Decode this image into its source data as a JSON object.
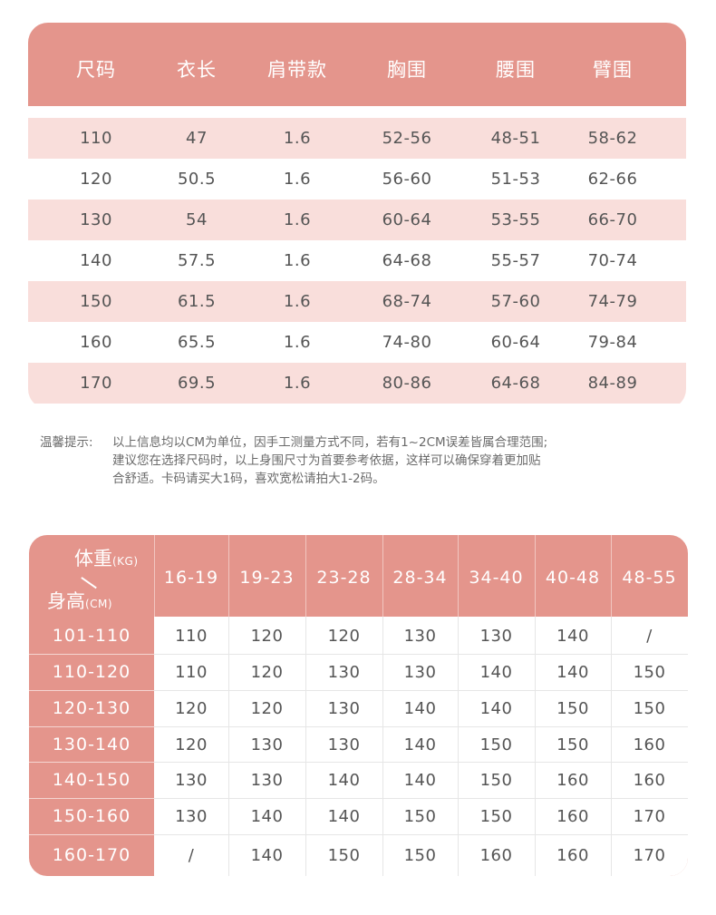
{
  "size_table": {
    "headers": [
      "尺码",
      "衣长",
      "肩带款",
      "胸围",
      "腰围",
      "臂围"
    ],
    "rows": [
      [
        "110",
        "47",
        "1.6",
        "52-56",
        "48-51",
        "58-62"
      ],
      [
        "120",
        "50.5",
        "1.6",
        "56-60",
        "51-53",
        "62-66"
      ],
      [
        "130",
        "54",
        "1.6",
        "60-64",
        "53-55",
        "66-70"
      ],
      [
        "140",
        "57.5",
        "1.6",
        "64-68",
        "55-57",
        "70-74"
      ],
      [
        "150",
        "61.5",
        "1.6",
        "68-74",
        "57-60",
        "74-79"
      ],
      [
        "160",
        "65.5",
        "1.6",
        "74-80",
        "60-64",
        "79-84"
      ],
      [
        "170",
        "69.5",
        "1.6",
        "80-86",
        "64-68",
        "84-89"
      ]
    ]
  },
  "note": {
    "label": "温馨提示:",
    "lines": [
      "以上信息均以CM为单位，因手工测量方式不同，若有1~2CM误差皆属合理范围;",
      "建议您在选择尺码时，以上身围尺寸为首要参考依据，这样可以确保穿着更加贴",
      "合舒适。卡码请买大1码，喜欢宽松请拍大1-2码。"
    ]
  },
  "fit_table": {
    "corner_weight_label": "体重",
    "corner_weight_unit": "(KG)",
    "corner_height_label": "身高",
    "corner_height_unit": "(CM)",
    "weight_columns": [
      "16-19",
      "19-23",
      "23-28",
      "28-34",
      "34-40",
      "40-48",
      "48-55"
    ],
    "rows": [
      {
        "height": "101-110",
        "sizes": [
          "110",
          "120",
          "120",
          "130",
          "130",
          "140",
          "/"
        ]
      },
      {
        "height": "110-120",
        "sizes": [
          "110",
          "120",
          "130",
          "130",
          "140",
          "140",
          "150"
        ]
      },
      {
        "height": "120-130",
        "sizes": [
          "120",
          "120",
          "130",
          "140",
          "140",
          "150",
          "150"
        ]
      },
      {
        "height": "130-140",
        "sizes": [
          "120",
          "130",
          "130",
          "140",
          "150",
          "150",
          "160"
        ]
      },
      {
        "height": "140-150",
        "sizes": [
          "130",
          "130",
          "140",
          "140",
          "150",
          "160",
          "160"
        ]
      },
      {
        "height": "150-160",
        "sizes": [
          "130",
          "140",
          "140",
          "150",
          "150",
          "160",
          "170"
        ]
      },
      {
        "height": "160-170",
        "sizes": [
          "/",
          "140",
          "150",
          "150",
          "160",
          "160",
          "170"
        ]
      }
    ]
  },
  "colors": {
    "header_pink": "#e4958c",
    "row_pink": "#f9dedb",
    "text_gray": "#555555"
  }
}
